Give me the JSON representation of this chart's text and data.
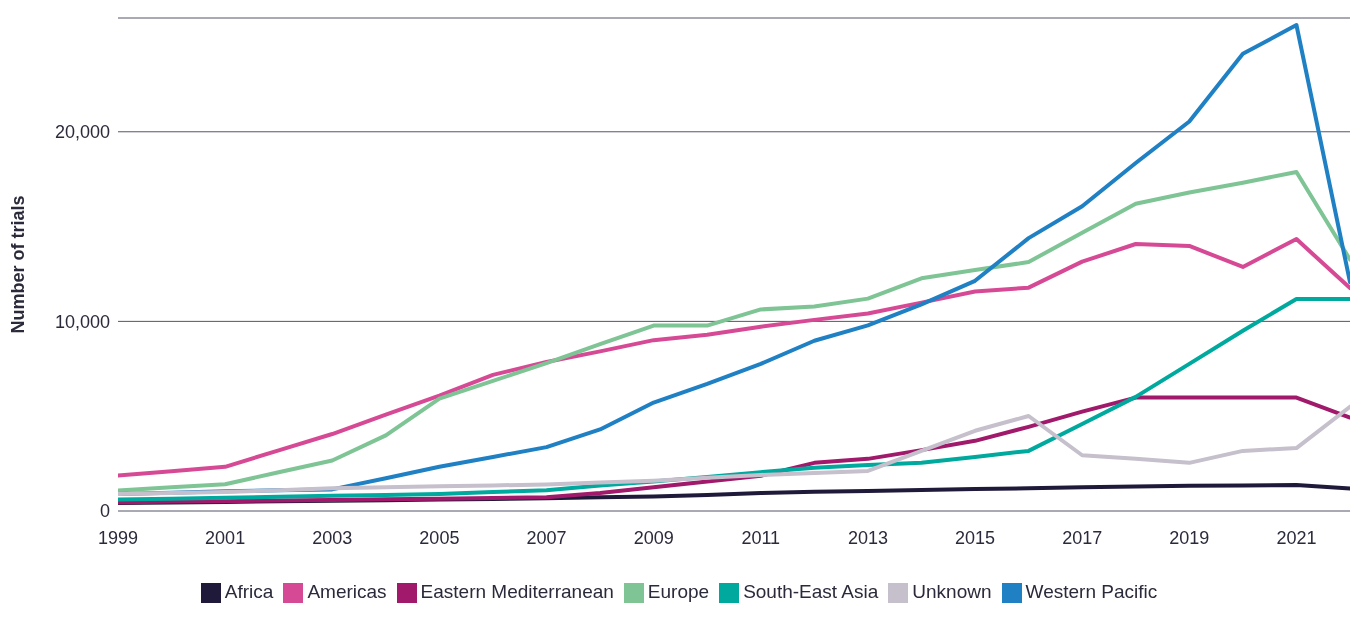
{
  "chart_data": {
    "type": "line",
    "ylabel": "Number of trials",
    "x": [
      1999,
      2000,
      2001,
      2002,
      2003,
      2004,
      2005,
      2006,
      2007,
      2008,
      2009,
      2010,
      2011,
      2012,
      2013,
      2014,
      2015,
      2016,
      2017,
      2018,
      2019,
      2020,
      2021,
      2022
    ],
    "series": [
      {
        "name": "Africa",
        "color": "#1f1a3a",
        "values": [
          420,
          450,
          480,
          510,
          540,
          570,
          600,
          630,
          670,
          720,
          770,
          850,
          950,
          1010,
          1060,
          1110,
          1160,
          1200,
          1250,
          1290,
          1330,
          1350,
          1370,
          1180
        ]
      },
      {
        "name": "Americas",
        "color": "#d64a95",
        "values": [
          1870,
          2100,
          2330,
          3200,
          4060,
          5080,
          6090,
          7180,
          7860,
          8420,
          9010,
          9300,
          9720,
          10080,
          10420,
          10990,
          11580,
          11780,
          13150,
          14080,
          13980,
          12870,
          14340,
          11760
        ]
      },
      {
        "name": "Eastern Mediterranean",
        "color": "#a0196b",
        "values": [
          450,
          500,
          520,
          550,
          580,
          620,
          650,
          690,
          730,
          950,
          1250,
          1550,
          1860,
          2540,
          2750,
          3210,
          3700,
          4440,
          5240,
          5980,
          5980,
          5980,
          5980,
          4930
        ]
      },
      {
        "name": "Europe",
        "color": "#7fc495",
        "values": [
          1080,
          1250,
          1410,
          2040,
          2660,
          3990,
          5930,
          6860,
          7800,
          8800,
          9780,
          9780,
          10630,
          10780,
          11200,
          12270,
          12710,
          13130,
          14680,
          16200,
          16800,
          17310,
          17880,
          13260
        ]
      },
      {
        "name": "South-East Asia",
        "color": "#00a99d",
        "values": [
          600,
          650,
          700,
          750,
          800,
          850,
          900,
          1000,
          1100,
          1350,
          1560,
          1800,
          2050,
          2280,
          2430,
          2540,
          2850,
          3170,
          4590,
          6020,
          7760,
          9510,
          11180,
          11180
        ]
      },
      {
        "name": "Western Pacific",
        "color": "#1f80c4",
        "values": [
          890,
          960,
          1040,
          1090,
          1140,
          1730,
          2330,
          2850,
          3370,
          4300,
          5720,
          6700,
          7760,
          8980,
          9790,
          10900,
          12140,
          14390,
          16070,
          18350,
          20540,
          24110,
          25630,
          12070
        ]
      },
      {
        "name": "Unknown",
        "color": "#c6bfcc",
        "values": [
          900,
          950,
          1000,
          1100,
          1200,
          1250,
          1300,
          1350,
          1400,
          1500,
          1600,
          1750,
          1900,
          2010,
          2110,
          3170,
          4230,
          5010,
          2940,
          2750,
          2540,
          3170,
          3320,
          5500
        ]
      }
    ],
    "xlim": [
      1999,
      2022
    ],
    "xticks": [
      1999,
      2001,
      2003,
      2005,
      2007,
      2009,
      2011,
      2013,
      2015,
      2017,
      2019,
      2021
    ],
    "ylim": [
      0,
      26000
    ],
    "yticks": [
      {
        "value": 0,
        "label": "0"
      },
      {
        "value": 10000,
        "label": "10,000"
      },
      {
        "value": 20000,
        "label": "20,000"
      }
    ],
    "grid": "y",
    "legend": "bottom"
  }
}
